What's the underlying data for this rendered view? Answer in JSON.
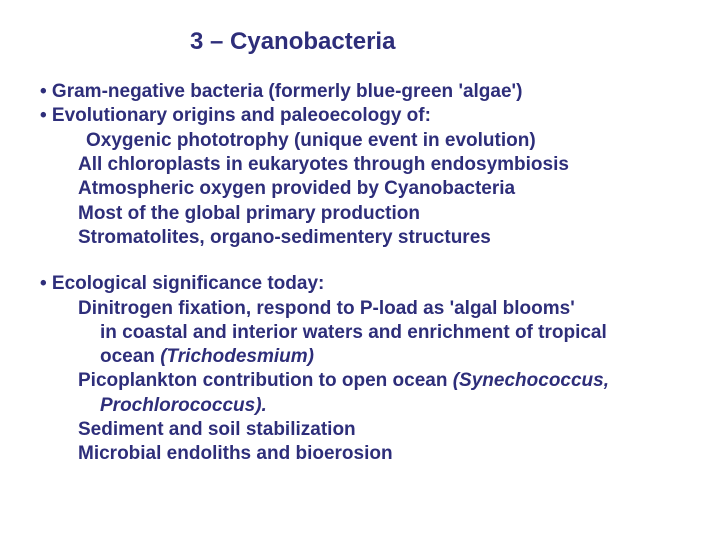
{
  "colors": {
    "text": "#2e2e7a",
    "background": "#ffffff"
  },
  "typography": {
    "title_fontsize": 24,
    "body_fontsize": 19,
    "font_family": "Arial",
    "font_weight": "bold"
  },
  "title": "3 – Cyanobacteria",
  "block1": {
    "b1": "• Gram-negative bacteria (formerly blue-green 'algae')",
    "b2": "• Evolutionary origins and paleoecology of:",
    "s1": "Oxygenic phototrophy (unique event in evolution)",
    "s2": "All chloroplasts in eukaryotes through endosymbiosis",
    "s3": "Atmospheric oxygen provided by Cyanobacteria",
    "s4": "Most of the global primary production",
    "s5": "Stromatolites, organo-sedimentery structures"
  },
  "block2": {
    "b1": "•  Ecological significance today:",
    "s1": "Dinitrogen fixation, respond to P-load as 'algal blooms'",
    "s1b": "in coastal and interior waters and enrichment of tropical",
    "s1c_pre": "ocean ",
    "s1c_it": "(Trichodesmium)",
    "s2_pre": "Picoplankton contribution to open ocean ",
    "s2_it": "(Synechococcus,",
    "s2b_it": "Prochlorococcus).",
    "s3": "Sediment and soil stabilization",
    "s4": "Microbial endoliths and bioerosion"
  }
}
